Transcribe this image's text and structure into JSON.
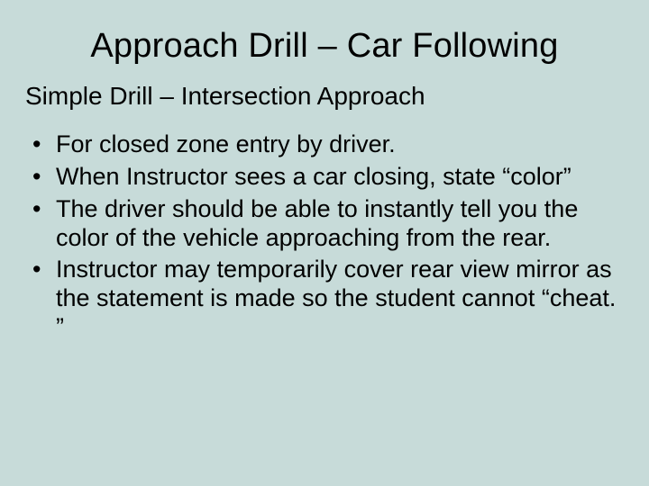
{
  "background_color": "#c7dbd9",
  "text_color": "#000000",
  "font_family": "Arial, Helvetica, sans-serif",
  "title": {
    "text": "Approach Drill – Car Following",
    "fontsize": 38,
    "align": "center"
  },
  "subtitle": {
    "text": "Simple Drill – Intersection Approach",
    "fontsize": 28,
    "align": "left"
  },
  "bullets": {
    "fontsize": 27,
    "marker": "•",
    "items": [
      "For closed zone entry by driver.",
      "When Instructor sees a car closing, state “color”",
      "The driver should be able to instantly tell you the color of the vehicle approaching from the rear.",
      "Instructor may temporarily cover rear view mirror as the statement is made so the student cannot “cheat. ”"
    ]
  }
}
